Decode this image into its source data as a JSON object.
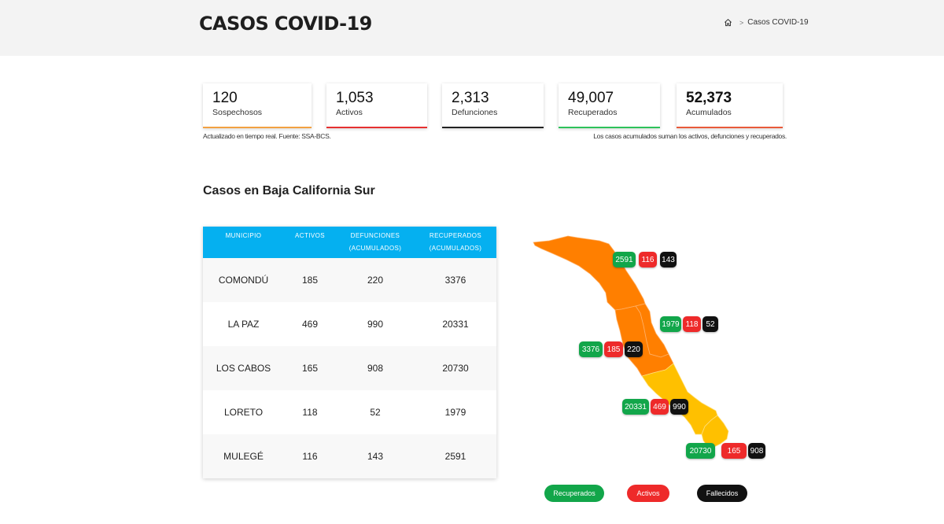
{
  "header": {
    "title": "CASOS COVID-19",
    "breadcrumb": {
      "current": "Casos COVID-19"
    }
  },
  "stats": [
    {
      "value": "120",
      "label": "Sospechosos",
      "color": "#f2a142"
    },
    {
      "value": "1,053",
      "label": "Activos",
      "color": "#e53030"
    },
    {
      "value": "2,313",
      "label": "Defunciones",
      "color": "#222222"
    },
    {
      "value": "49,007",
      "label": "Recuperados",
      "color": "#2ec25a"
    },
    {
      "value": "52,373",
      "label": "Acumulados",
      "color": "#e85a3a"
    }
  ],
  "notes": {
    "left": "Actualizado en tiempo real. Fuente: SSA-BCS.",
    "right": "Los casos acumulados suman los activos, defunciones y recuperados."
  },
  "section_title": "Casos en Baja California Sur",
  "table": {
    "headers": [
      {
        "line1": "MUNICIPIO",
        "line2": ""
      },
      {
        "line1": "ACTIVOS",
        "line2": ""
      },
      {
        "line1": "DEFUNCIONES",
        "line2": "(ACUMULADOS)"
      },
      {
        "line1": "RECUPERADOS",
        "line2": "(ACUMULADOS)"
      }
    ],
    "rows": [
      {
        "municipio": "COMONDÚ",
        "activos": "185",
        "defunciones": "220",
        "recuperados": "3376"
      },
      {
        "municipio": "LA PAZ",
        "activos": "469",
        "defunciones": "990",
        "recuperados": "20331"
      },
      {
        "municipio": "LOS CABOS",
        "activos": "165",
        "defunciones": "908",
        "recuperados": "20730"
      },
      {
        "municipio": "LORETO",
        "activos": "118",
        "defunciones": "52",
        "recuperados": "1979"
      },
      {
        "municipio": "MULEGÉ",
        "activos": "116",
        "defunciones": "143",
        "recuperados": "2591"
      }
    ]
  },
  "map": {
    "colors": {
      "recuperados": "#12a64a",
      "activos": "#ee2a2a",
      "fallecidos": "#111111",
      "orange": "#ff7f00",
      "yellow": "#ffc000"
    },
    "badges": [
      {
        "region": "mulege",
        "recuperados": "2591",
        "activos": "116",
        "fallecidos": "143"
      },
      {
        "region": "loreto",
        "recuperados": "1979",
        "activos": "118",
        "fallecidos": "52"
      },
      {
        "region": "comondu",
        "recuperados": "3376",
        "activos": "185",
        "fallecidos": "220"
      },
      {
        "region": "la-paz",
        "recuperados": "20331",
        "activos": "469",
        "fallecidos": "990"
      },
      {
        "region": "los-cabos",
        "recuperados": "20730",
        "activos": "165",
        "fallecidos": "908"
      }
    ]
  },
  "legend": {
    "recuperados": "Recuperados",
    "activos": "Activos",
    "fallecidos": "Fallecidos"
  }
}
